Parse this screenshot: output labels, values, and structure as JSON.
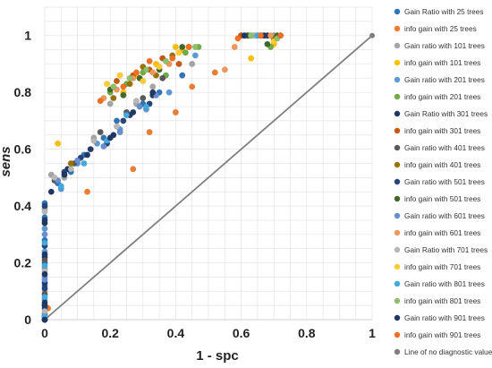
{
  "chart_data": {
    "type": "scatter",
    "xlabel": "1 - spc",
    "ylabel": "sens",
    "xlim": [
      0,
      1
    ],
    "ylim": [
      0,
      1.1
    ],
    "x_ticks": [
      "0",
      "0.2",
      "0.4",
      "0.6",
      "0.8",
      "1"
    ],
    "y_ticks": [
      "0",
      "0.2",
      "0.4",
      "0.6",
      "0.8",
      "1"
    ],
    "grid": true,
    "legend_position": "right",
    "series": [
      {
        "name": "Gain Ratio with 25 trees",
        "color": "#2E75B6",
        "points": [
          [
            0,
            0
          ],
          [
            0,
            0.05
          ],
          [
            0,
            0.12
          ],
          [
            0,
            0.2
          ],
          [
            0,
            0.28
          ],
          [
            0,
            0.36
          ],
          [
            0,
            0.41
          ],
          [
            0.04,
            0.48
          ],
          [
            0.08,
            0.52
          ],
          [
            0.12,
            0.58
          ],
          [
            0.18,
            0.64
          ],
          [
            0.22,
            0.7
          ],
          [
            0.3,
            0.76
          ],
          [
            0.35,
            0.8
          ],
          [
            0.42,
            0.86
          ],
          [
            0.6,
            1
          ],
          [
            0.66,
            1
          ],
          [
            0.72,
            1
          ]
        ]
      },
      {
        "name": "info gain with 25 trees",
        "color": "#ED7D31",
        "points": [
          [
            0,
            0
          ],
          [
            0.01,
            0.04
          ],
          [
            0.13,
            0.45
          ],
          [
            0.27,
            0.53
          ],
          [
            0.32,
            0.66
          ],
          [
            0.4,
            0.73
          ],
          [
            0.45,
            0.82
          ],
          [
            0.52,
            0.87
          ],
          [
            0.6,
            1
          ],
          [
            0.7,
            1
          ]
        ]
      },
      {
        "name": "Gain ratio with 101 trees",
        "color": "#A5A5A5",
        "points": [
          [
            0,
            0.02
          ],
          [
            0,
            0.1
          ],
          [
            0,
            0.18
          ],
          [
            0,
            0.39
          ],
          [
            0.02,
            0.51
          ],
          [
            0.06,
            0.5
          ],
          [
            0.15,
            0.64
          ],
          [
            0.2,
            0.76
          ],
          [
            0.28,
            0.76
          ],
          [
            0.33,
            0.82
          ],
          [
            0.45,
            0.9
          ],
          [
            0.62,
            1
          ],
          [
            0.7,
            1
          ]
        ]
      },
      {
        "name": "info gain with 101 trees",
        "color": "#FFC000",
        "points": [
          [
            0.04,
            0.62
          ],
          [
            0.24,
            0.8
          ],
          [
            0.28,
            0.86
          ],
          [
            0.34,
            0.9
          ],
          [
            0.4,
            0.96
          ],
          [
            0.42,
            0.95
          ],
          [
            0.63,
            0.92
          ],
          [
            0.68,
            1
          ],
          [
            0.7,
            0.97
          ]
        ]
      },
      {
        "name": "Gain ratio with 201 trees",
        "color": "#5B9BD5",
        "points": [
          [
            0,
            0.01
          ],
          [
            0,
            0.07
          ],
          [
            0,
            0.15
          ],
          [
            0,
            0.24
          ],
          [
            0,
            0.32
          ],
          [
            0.05,
            0.46
          ],
          [
            0.1,
            0.55
          ],
          [
            0.16,
            0.62
          ],
          [
            0.23,
            0.67
          ],
          [
            0.31,
            0.74
          ],
          [
            0.38,
            0.8
          ],
          [
            0.46,
            0.93
          ],
          [
            0.64,
            1
          ]
        ]
      },
      {
        "name": "info gain with 201 trees",
        "color": "#70AD47",
        "points": [
          [
            0.2,
            0.8
          ],
          [
            0.25,
            0.83
          ],
          [
            0.3,
            0.87
          ],
          [
            0.37,
            0.86
          ],
          [
            0.43,
            0.94
          ],
          [
            0.47,
            0.96
          ],
          [
            0.66,
            1
          ],
          [
            0.69,
            0.96
          ],
          [
            0.72,
            1
          ]
        ]
      },
      {
        "name": "Gain Ratio with 301 trees",
        "color": "#1F3864",
        "points": [
          [
            0,
            0
          ],
          [
            0,
            0.06
          ],
          [
            0,
            0.13
          ],
          [
            0,
            0.22
          ],
          [
            0,
            0.34
          ],
          [
            0.02,
            0.45
          ],
          [
            0.07,
            0.53
          ],
          [
            0.14,
            0.6
          ],
          [
            0.21,
            0.65
          ],
          [
            0.26,
            0.72
          ],
          [
            0.33,
            0.79
          ],
          [
            0.62,
            1
          ],
          [
            0.68,
            1
          ]
        ]
      },
      {
        "name": "info gain with 301 trees",
        "color": "#C55A11",
        "points": [
          [
            0.22,
            0.84
          ],
          [
            0.27,
            0.86
          ],
          [
            0.32,
            0.88
          ],
          [
            0.36,
            0.92
          ],
          [
            0.41,
            0.9
          ],
          [
            0.44,
            0.96
          ],
          [
            0.6,
            1
          ],
          [
            0.67,
            1
          ]
        ]
      },
      {
        "name": "Gain ratio with 401 trees",
        "color": "#595959",
        "points": [
          [
            0,
            0.01
          ],
          [
            0,
            0.09
          ],
          [
            0,
            0.21
          ],
          [
            0.03,
            0.49
          ],
          [
            0.09,
            0.55
          ],
          [
            0.17,
            0.66
          ],
          [
            0.25,
            0.73
          ],
          [
            0.3,
            0.78
          ],
          [
            0.36,
            0.85
          ],
          [
            0.65,
            1
          ]
        ]
      },
      {
        "name": "info gain with 401 trees",
        "color": "#997300",
        "points": [
          [
            0.08,
            0.55
          ],
          [
            0.21,
            0.78
          ],
          [
            0.26,
            0.83
          ],
          [
            0.3,
            0.89
          ],
          [
            0.34,
            0.86
          ],
          [
            0.39,
            0.93
          ],
          [
            0.61,
            1
          ],
          [
            0.7,
            0.99
          ]
        ]
      },
      {
        "name": "Gain ratio with 501 trees",
        "color": "#264478",
        "points": [
          [
            0,
            0
          ],
          [
            0,
            0.04
          ],
          [
            0,
            0.11
          ],
          [
            0,
            0.26
          ],
          [
            0,
            0.4
          ],
          [
            0.06,
            0.52
          ],
          [
            0.11,
            0.57
          ],
          [
            0.19,
            0.62
          ],
          [
            0.24,
            0.7
          ],
          [
            0.32,
            0.76
          ],
          [
            0.63,
            1
          ]
        ]
      },
      {
        "name": "info gain with 501 trees",
        "color": "#43682B",
        "points": [
          [
            0.2,
            0.81
          ],
          [
            0.24,
            0.79
          ],
          [
            0.29,
            0.85
          ],
          [
            0.35,
            0.88
          ],
          [
            0.42,
            0.96
          ],
          [
            0.62,
            1
          ],
          [
            0.68,
            0.97
          ],
          [
            0.71,
            1
          ]
        ]
      },
      {
        "name": "Gain ratio with 601 trees",
        "color": "#698ED0",
        "points": [
          [
            0,
            0.02
          ],
          [
            0,
            0.14
          ],
          [
            0,
            0.3
          ],
          [
            0.04,
            0.49
          ],
          [
            0.1,
            0.56
          ],
          [
            0.18,
            0.61
          ],
          [
            0.23,
            0.66
          ],
          [
            0.29,
            0.75
          ],
          [
            0.34,
            0.79
          ],
          [
            0.66,
            1
          ]
        ]
      },
      {
        "name": "info gain with 601 trees",
        "color": "#F1975A",
        "points": [
          [
            0.18,
            0.78
          ],
          [
            0.22,
            0.81
          ],
          [
            0.27,
            0.85
          ],
          [
            0.33,
            0.87
          ],
          [
            0.38,
            0.9
          ],
          [
            0.55,
            0.88
          ],
          [
            0.58,
            0.96
          ],
          [
            0.69,
            1
          ]
        ]
      },
      {
        "name": "Gain Ratio with 701 trees",
        "color": "#B7B7B7",
        "points": [
          [
            0,
            0.03
          ],
          [
            0,
            0.17
          ],
          [
            0,
            0.38
          ],
          [
            0.03,
            0.5
          ],
          [
            0.08,
            0.53
          ],
          [
            0.15,
            0.63
          ],
          [
            0.22,
            0.68
          ],
          [
            0.28,
            0.77
          ],
          [
            0.64,
            1
          ]
        ]
      },
      {
        "name": "info gain with 701 trees",
        "color": "#FFCD33",
        "points": [
          [
            0.19,
            0.83
          ],
          [
            0.23,
            0.86
          ],
          [
            0.3,
            0.84
          ],
          [
            0.35,
            0.89
          ],
          [
            0.41,
            0.94
          ],
          [
            0.67,
            1
          ],
          [
            0.7,
            0.98
          ]
        ]
      },
      {
        "name": "Gain ratio with 801 trees",
        "color": "#41A8E0",
        "points": [
          [
            0,
            0.01
          ],
          [
            0,
            0.08
          ],
          [
            0,
            0.19
          ],
          [
            0,
            0.27
          ],
          [
            0.05,
            0.47
          ],
          [
            0.12,
            0.55
          ],
          [
            0.19,
            0.63
          ],
          [
            0.25,
            0.72
          ],
          [
            0.31,
            0.75
          ],
          [
            0.65,
            1
          ]
        ]
      },
      {
        "name": "info gain with 801 trees",
        "color": "#8CC168",
        "points": [
          [
            0.21,
            0.82
          ],
          [
            0.26,
            0.85
          ],
          [
            0.31,
            0.88
          ],
          [
            0.37,
            0.91
          ],
          [
            0.46,
            0.96
          ],
          [
            0.63,
            1
          ],
          [
            0.71,
            0.99
          ]
        ]
      },
      {
        "name": "Gain ratio with 901 trees",
        "color": "#203864",
        "points": [
          [
            0,
            0
          ],
          [
            0,
            0.05
          ],
          [
            0,
            0.16
          ],
          [
            0,
            0.23
          ],
          [
            0,
            0.35
          ],
          [
            0.06,
            0.51
          ],
          [
            0.13,
            0.58
          ],
          [
            0.2,
            0.64
          ],
          [
            0.27,
            0.73
          ],
          [
            0.33,
            0.8
          ],
          [
            0.61,
            1
          ],
          [
            0.67,
            1
          ]
        ]
      },
      {
        "name": "info gain with 901 trees",
        "color": "#F46F22",
        "points": [
          [
            0.17,
            0.77
          ],
          [
            0.24,
            0.82
          ],
          [
            0.28,
            0.87
          ],
          [
            0.32,
            0.91
          ],
          [
            0.39,
            0.92
          ],
          [
            0.44,
            0.96
          ],
          [
            0.59,
            0.99
          ],
          [
            0.66,
            1
          ],
          [
            0.72,
            1
          ]
        ]
      }
    ],
    "reference_line": {
      "name": "Line of no diagnostic value",
      "color": "#7F7F7F",
      "points": [
        [
          0,
          0
        ],
        [
          1,
          1
        ]
      ]
    }
  }
}
